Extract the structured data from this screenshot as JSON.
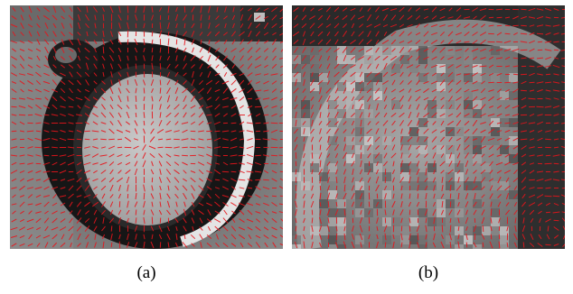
{
  "figure": {
    "panels": [
      {
        "caption": "(a)",
        "image": "cardiac-mri-short-axis-with-red-motion-vectors"
      },
      {
        "caption": "(b)",
        "image": "cardiac-mri-zoomed-myocardium-with-red-motion-vectors"
      }
    ],
    "arrow_color": "#e8141b"
  }
}
